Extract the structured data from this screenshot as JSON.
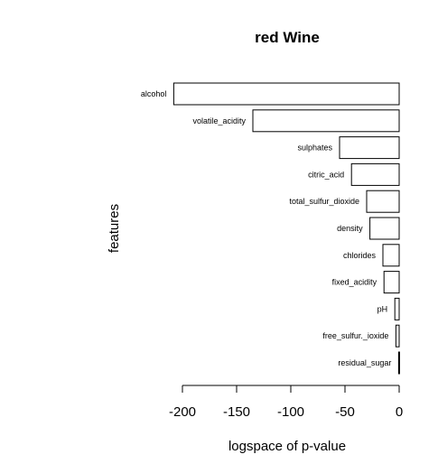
{
  "chart_data": {
    "type": "bar",
    "orientation": "horizontal",
    "title": "red Wine",
    "xlabel": "logspace of p-value",
    "ylabel": "features",
    "xlim": [
      -200,
      0
    ],
    "xticks": [
      -200,
      -150,
      -100,
      -50,
      0
    ],
    "tick_labels": [
      "-200",
      "-150",
      "-100",
      "-50",
      "0"
    ],
    "grid": false,
    "categories": [
      "alcohol",
      "volatile_acidity",
      "sulphates",
      "citric_acid",
      "total_sulfur_dioxide",
      "density",
      "chlorides",
      "fixed_acidity",
      "pH",
      "free_sulfur._ioxide",
      "residual_sugar"
    ],
    "values": [
      -208,
      -135,
      -55,
      -44,
      -30,
      -27,
      -15,
      -14,
      -4,
      -3,
      -0.5
    ],
    "bar_fill": "#ffffff",
    "bar_stroke": "#000000"
  }
}
